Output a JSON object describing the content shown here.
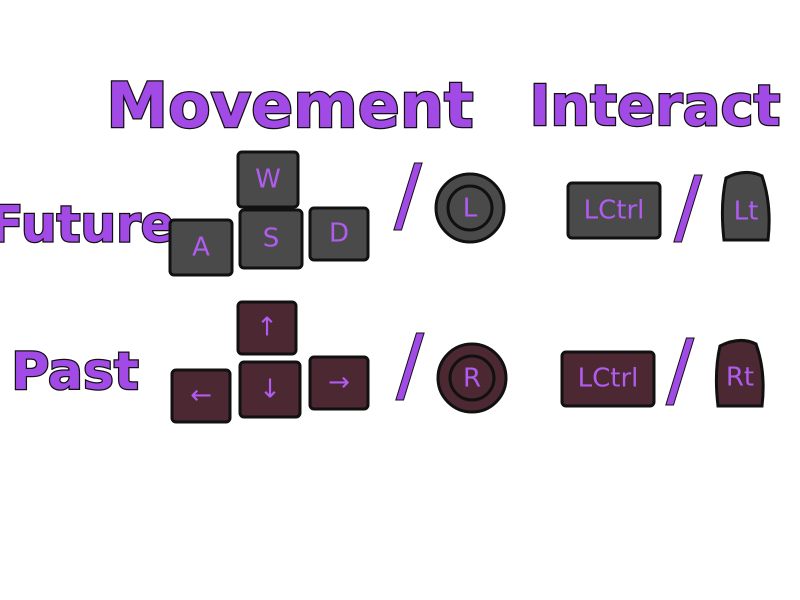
{
  "header": {
    "columns": [
      "Movement",
      "Interact"
    ]
  },
  "separator": "/",
  "rows": [
    {
      "label": "Future",
      "movement_keys": [
        "W",
        "A",
        "S",
        "D"
      ],
      "movement_button": "L",
      "interact_key": "LCtrl",
      "interact_button": "Lt"
    },
    {
      "label": "Past",
      "movement_keys": [
        "↑",
        "←",
        "↓",
        "→"
      ],
      "movement_button": "R",
      "interact_key": "LCtrl",
      "interact_button": "Rt"
    }
  ]
}
